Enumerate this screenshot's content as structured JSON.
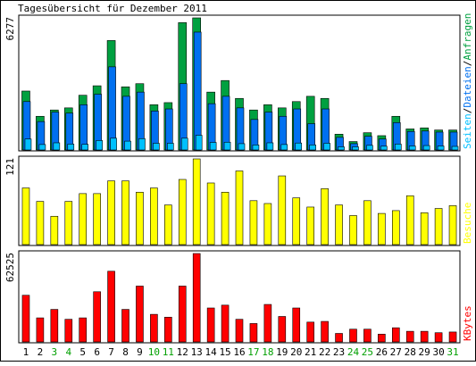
{
  "title": "Tagesübersicht für Dezember 2011",
  "colors": {
    "background": "#ffffff",
    "frame": "#000000",
    "anfragen": "#00a040",
    "dateien": "#0070f0",
    "seiten": "#00c0ff",
    "besuche": "#ffff00",
    "kbytes": "#ff0000",
    "weekday_label": "#000000",
    "weekend_label": "#00a000"
  },
  "chart_data": [
    {
      "type": "bar",
      "panel": "hits",
      "y_max_label": "6277",
      "ylim": [
        0,
        6277
      ],
      "legend_placement": "right-vertical",
      "legend": [
        {
          "text": "Seiten",
          "color": "#00c0ff"
        },
        {
          "text": "Dateien",
          "color": "#0070f0"
        },
        {
          "text": "Anfragen",
          "color": "#00a040"
        }
      ],
      "categories": [
        "1",
        "2",
        "3",
        "4",
        "5",
        "6",
        "7",
        "8",
        "9",
        "10",
        "11",
        "12",
        "13",
        "14",
        "15",
        "16",
        "17",
        "18",
        "19",
        "20",
        "21",
        "22",
        "23",
        "24",
        "25",
        "26",
        "27",
        "28",
        "29",
        "30",
        "31"
      ],
      "series": [
        {
          "name": "Anfragen",
          "values": [
            2800,
            1600,
            1900,
            2000,
            2600,
            3050,
            5200,
            3000,
            3150,
            2150,
            2250,
            6050,
            6277,
            2750,
            3300,
            2450,
            1900,
            2150,
            2000,
            2300,
            2550,
            2450,
            750,
            400,
            820,
            680,
            1600,
            1000,
            1050,
            950,
            950
          ]
        },
        {
          "name": "Dateien",
          "values": [
            2300,
            1350,
            1800,
            1750,
            2150,
            2650,
            3950,
            2550,
            2750,
            1850,
            1950,
            3150,
            5600,
            2200,
            2550,
            2000,
            1450,
            1800,
            1600,
            1950,
            1250,
            1950,
            600,
            300,
            650,
            520,
            1300,
            880,
            900,
            850,
            850
          ]
        },
        {
          "name": "Seiten",
          "values": [
            520,
            260,
            340,
            280,
            270,
            450,
            560,
            420,
            540,
            320,
            320,
            560,
            700,
            360,
            370,
            300,
            240,
            340,
            260,
            330,
            240,
            320,
            150,
            150,
            220,
            180,
            280,
            190,
            210,
            190,
            170
          ]
        }
      ]
    },
    {
      "type": "bar",
      "panel": "visits",
      "y_max_label": "121",
      "ylim": [
        0,
        121
      ],
      "legend_placement": "right-vertical",
      "legend": [
        {
          "text": "Besuche",
          "color": "#ffff00"
        }
      ],
      "categories": [
        "1",
        "2",
        "3",
        "4",
        "5",
        "6",
        "7",
        "8",
        "9",
        "10",
        "11",
        "12",
        "13",
        "14",
        "15",
        "16",
        "17",
        "18",
        "19",
        "20",
        "21",
        "22",
        "23",
        "24",
        "25",
        "26",
        "27",
        "28",
        "29",
        "30",
        "31"
      ],
      "series": [
        {
          "name": "Besuche",
          "values": [
            80,
            61,
            40,
            61,
            72,
            72,
            90,
            90,
            74,
            80,
            56,
            92,
            121,
            87,
            74,
            104,
            62,
            58,
            97,
            66,
            53,
            79,
            56,
            41,
            62,
            44,
            48,
            69,
            45,
            51,
            55
          ]
        }
      ]
    },
    {
      "type": "bar",
      "panel": "kbytes",
      "y_max_label": "62525",
      "ylim": [
        0,
        62525
      ],
      "legend_placement": "right-vertical",
      "legend": [
        {
          "text": "KBytes",
          "color": "#ff0000"
        }
      ],
      "categories": [
        "1",
        "2",
        "3",
        "4",
        "5",
        "6",
        "7",
        "8",
        "9",
        "10",
        "11",
        "12",
        "13",
        "14",
        "15",
        "16",
        "17",
        "18",
        "19",
        "20",
        "21",
        "22",
        "23",
        "24",
        "25",
        "26",
        "27",
        "28",
        "29",
        "30",
        "31"
      ],
      "series": [
        {
          "name": "KBytes",
          "values": [
            33000,
            17000,
            23000,
            16000,
            17000,
            35500,
            50000,
            23000,
            39500,
            19500,
            17500,
            39500,
            62525,
            24000,
            26000,
            16000,
            13000,
            26500,
            18000,
            24000,
            14000,
            14500,
            6000,
            9000,
            9000,
            5500,
            10000,
            7500,
            7500,
            6500,
            7000
          ]
        }
      ]
    }
  ],
  "x_labels": [
    {
      "text": "1",
      "weekend": false
    },
    {
      "text": "2",
      "weekend": false
    },
    {
      "text": "3",
      "weekend": true
    },
    {
      "text": "4",
      "weekend": true
    },
    {
      "text": "5",
      "weekend": false
    },
    {
      "text": "6",
      "weekend": false
    },
    {
      "text": "7",
      "weekend": false
    },
    {
      "text": "8",
      "weekend": false
    },
    {
      "text": "9",
      "weekend": false
    },
    {
      "text": "10",
      "weekend": true
    },
    {
      "text": "11",
      "weekend": true
    },
    {
      "text": "12",
      "weekend": false
    },
    {
      "text": "13",
      "weekend": false
    },
    {
      "text": "14",
      "weekend": false
    },
    {
      "text": "15",
      "weekend": false
    },
    {
      "text": "16",
      "weekend": false
    },
    {
      "text": "17",
      "weekend": true
    },
    {
      "text": "18",
      "weekend": true
    },
    {
      "text": "19",
      "weekend": false
    },
    {
      "text": "20",
      "weekend": false
    },
    {
      "text": "21",
      "weekend": false
    },
    {
      "text": "22",
      "weekend": false
    },
    {
      "text": "23",
      "weekend": false
    },
    {
      "text": "24",
      "weekend": true
    },
    {
      "text": "25",
      "weekend": true
    },
    {
      "text": "26",
      "weekend": false
    },
    {
      "text": "27",
      "weekend": false
    },
    {
      "text": "28",
      "weekend": false
    },
    {
      "text": "29",
      "weekend": false
    },
    {
      "text": "30",
      "weekend": false
    },
    {
      "text": "31",
      "weekend": true
    }
  ]
}
